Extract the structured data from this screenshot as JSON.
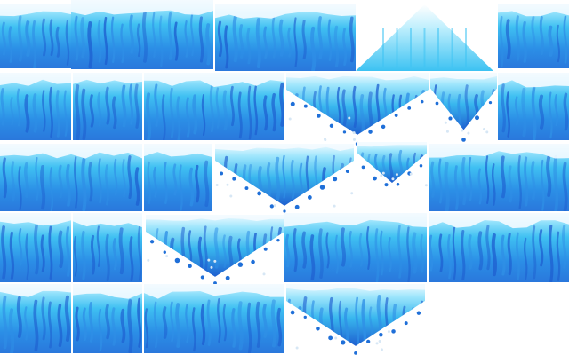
{
  "sheet": {
    "background": "#ffffff",
    "palette": {
      "deep": "#1e5fd0",
      "mid": "#2f8fe6",
      "bright": "#3fc4f4",
      "light": "#9ee4fb",
      "snow": "#f4fbff",
      "drop": "#1f6fd8",
      "speck": "#d7e7f5"
    },
    "tile_kinds": [
      {
        "kind": "waterfall-fill",
        "icon": "waterfall-fill-icon",
        "count": 14
      },
      {
        "kind": "ice-inverted-triangle",
        "icon": "icicle-cluster-icon",
        "count": 4
      },
      {
        "kind": "ice-triangle-peak",
        "icon": "ice-peak-icon",
        "count": 1
      },
      {
        "kind": "ice-small-cluster",
        "icon": "small-icicle-icon",
        "count": 1
      },
      {
        "kind": "ice-edge-strip",
        "icon": "waterfall-edge-icon",
        "count": 2
      }
    ]
  }
}
